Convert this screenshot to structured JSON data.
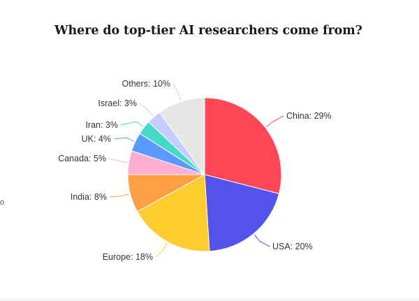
{
  "chart_data": {
    "type": "pie",
    "title": "Where do top-tier AI researchers come from?",
    "unit": "%",
    "legend": "none",
    "slices": [
      {
        "label": "China",
        "value": 29,
        "display": "China: 29%",
        "color": "#ff4757"
      },
      {
        "label": "USA",
        "value": 20,
        "display": "USA: 20%",
        "color": "#5352ed"
      },
      {
        "label": "Europe",
        "value": 18,
        "display": "Europe: 18%",
        "color": "#ffcc2f"
      },
      {
        "label": "India",
        "value": 8,
        "display": "India: 8%",
        "color": "#ff9f43"
      },
      {
        "label": "Canada",
        "value": 5,
        "display": "Canada: 5%",
        "color": "#ffadd2"
      },
      {
        "label": "UK",
        "value": 4,
        "display": "UK: 4%",
        "color": "#5b9bff"
      },
      {
        "label": "Iran",
        "value": 3,
        "display": "Iran: 3%",
        "color": "#44d9c8"
      },
      {
        "label": "Israel",
        "value": 3,
        "display": "Israel: 3%",
        "color": "#c7cbff"
      },
      {
        "label": "Others",
        "value": 10,
        "display": "Others: 10%",
        "color": "#e6e6e6"
      }
    ]
  },
  "stray_mark": "o"
}
